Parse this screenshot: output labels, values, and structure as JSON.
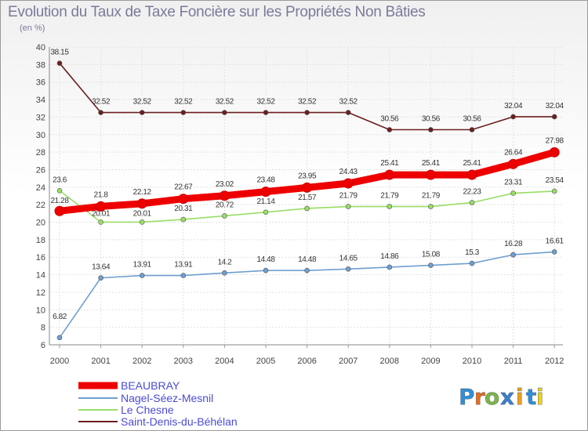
{
  "title": "Evolution du Taux de Taxe Foncière sur les Propriétés Non Bâties",
  "subtitle": "(en %)",
  "logo": {
    "text": "Proxiti",
    "letters": [
      "P",
      "r",
      "o",
      "x",
      "i",
      "t",
      "i"
    ],
    "colors": [
      "#2f8fd8",
      "#e86b1e",
      "#7ab648",
      "#3a7fd0",
      "#e8a01e",
      "#2f8fd8",
      "#e8d21e"
    ]
  },
  "chart_data": {
    "type": "line",
    "title": "Evolution du Taux de Taxe Foncière sur les Propriétés Non Bâties",
    "ylabel": "(en %)",
    "xlabel": "",
    "ylim": [
      6,
      40
    ],
    "yticks": [
      6,
      8,
      10,
      12,
      14,
      16,
      18,
      20,
      22,
      24,
      26,
      28,
      30,
      32,
      34,
      36,
      38,
      40
    ],
    "x": [
      "2000",
      "2001",
      "2002",
      "2003",
      "2004",
      "2005",
      "2006",
      "2007",
      "2008",
      "2009",
      "2010",
      "2011",
      "2012"
    ],
    "grid": true,
    "legend_position": "bottom-left",
    "series": [
      {
        "name": "Saint-Denis-du-Béhélan",
        "color": "#6b1f1f",
        "values": [
          38.15,
          32.52,
          32.52,
          32.52,
          32.52,
          32.52,
          32.52,
          32.52,
          30.56,
          30.56,
          30.56,
          32.04,
          32.04
        ],
        "labels": [
          "38.15",
          "32.52",
          "32.52",
          "32.52",
          "32.52",
          "32.52",
          "32.52",
          "32.52",
          "30.56",
          "30.56",
          "30.56",
          "32.04",
          "32.04"
        ]
      },
      {
        "name": "Le Chesne",
        "color": "#99dd66",
        "values": [
          23.6,
          20.01,
          20.01,
          20.31,
          20.72,
          21.14,
          21.57,
          21.79,
          21.79,
          21.79,
          22.23,
          23.31,
          23.54
        ],
        "labels": [
          "23.6",
          "20.01",
          "20.01",
          "20.31",
          "20.72",
          "21.14",
          "21.57",
          "21.79",
          "21.79",
          "21.79",
          "22.23",
          "23.31",
          "23.54"
        ]
      },
      {
        "name": "Nagel-Séez-Mesnil",
        "color": "#6f9fcf",
        "values": [
          6.82,
          13.64,
          13.91,
          13.91,
          14.2,
          14.48,
          14.48,
          14.65,
          14.86,
          15.08,
          15.3,
          16.28,
          16.61
        ],
        "labels": [
          "6.82",
          "13.64",
          "13.91",
          "13.91",
          "14.2",
          "14.48",
          "14.48",
          "14.65",
          "14.86",
          "15.08",
          "15.3",
          "16.28",
          "16.61"
        ]
      },
      {
        "name": "BEAUBRAY",
        "color": "#ee0000",
        "values": [
          21.28,
          21.8,
          22.12,
          22.67,
          23.02,
          23.48,
          23.95,
          24.43,
          25.41,
          25.41,
          25.41,
          26.64,
          27.98
        ],
        "labels": [
          "21.28",
          "21.8",
          "22.12",
          "22.67",
          "23.02",
          "23.48",
          "23.95",
          "24.43",
          "25.41",
          "25.41",
          "25.41",
          "26.64",
          "27.98"
        ]
      }
    ],
    "legend_order": [
      "BEAUBRAY",
      "Nagel-Séez-Mesnil",
      "Le Chesne",
      "Saint-Denis-du-Béhélan"
    ]
  }
}
